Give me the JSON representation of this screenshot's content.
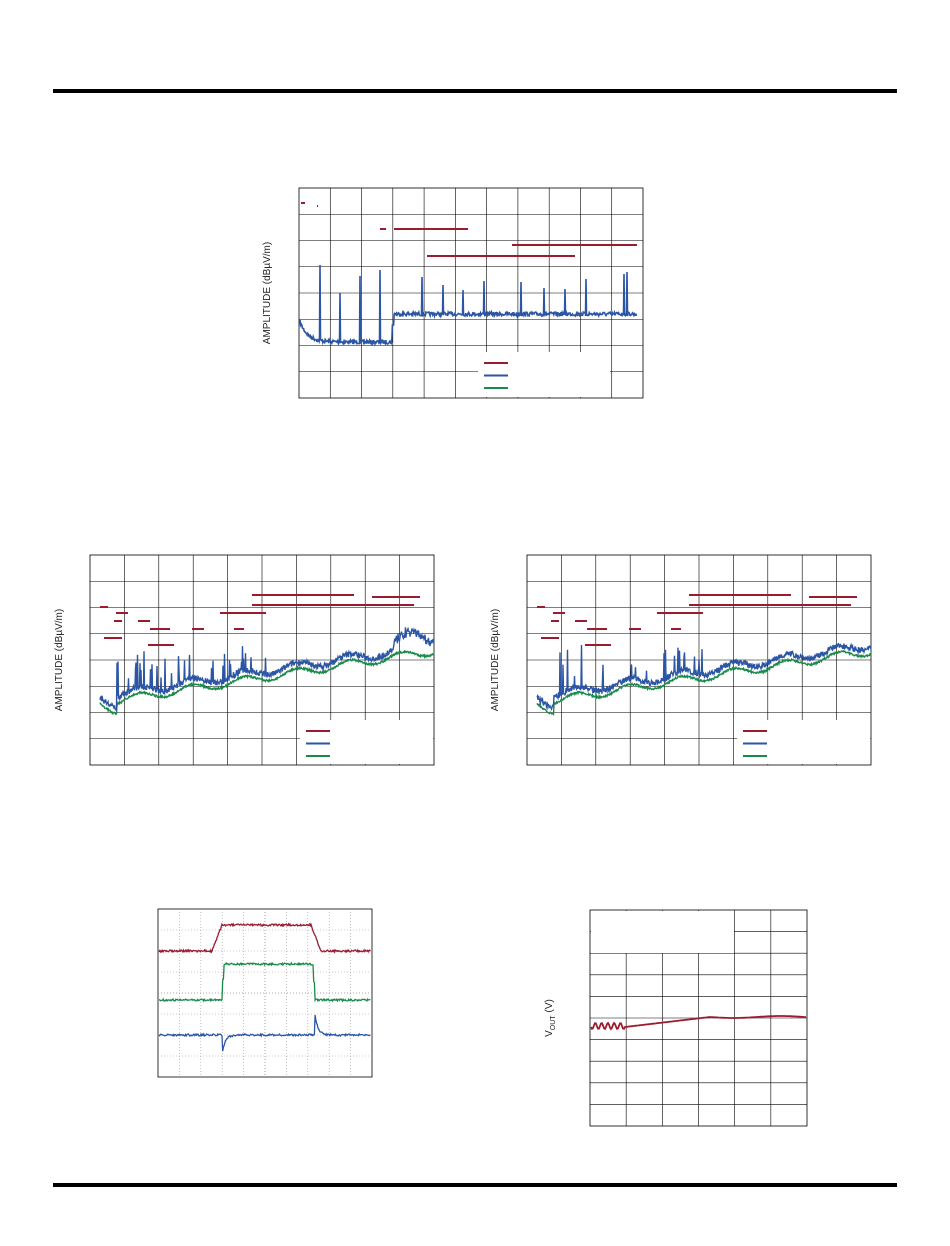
{
  "page": {
    "emi_charts": [
      {
        "y_label": "AMPLITUDE (dBµV/m)"
      },
      {
        "y_label": "AMPLITUDE (dBµV/m)"
      },
      {
        "y_label": "AMPLITUDE (dBµV/m)"
      }
    ],
    "vout_chart": {
      "y_label_main": "V",
      "y_label_sub": "OUT",
      "y_label_unit": "(V)"
    }
  }
}
